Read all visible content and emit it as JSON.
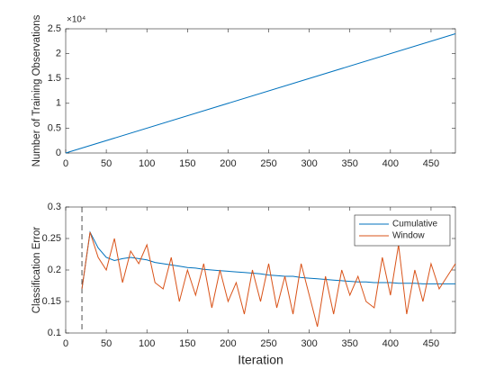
{
  "chart_data": [
    {
      "type": "line",
      "y_label": "Number of Training Observations",
      "y_exponent": "×10⁴",
      "x": [
        0,
        480
      ],
      "values": [
        0,
        24000
      ],
      "color": "#0072bd",
      "xlim": [
        0,
        480
      ],
      "xticks": [
        0,
        50,
        100,
        150,
        200,
        250,
        300,
        350,
        400,
        450
      ],
      "ylim": [
        0,
        25000
      ],
      "yticks": [
        0,
        {
          "value": 5000,
          "label": "0.5"
        },
        {
          "value": 10000,
          "label": "1"
        },
        {
          "value": 15000,
          "label": "1.5"
        },
        {
          "value": 20000,
          "label": "2"
        },
        {
          "value": 25000,
          "label": "2.5"
        }
      ],
      "grid": false
    },
    {
      "type": "line",
      "x_label": "Iteration",
      "y_label": "Classification Error",
      "x": [
        20,
        30,
        40,
        50,
        60,
        70,
        80,
        90,
        100,
        110,
        120,
        130,
        140,
        150,
        160,
        170,
        180,
        190,
        200,
        210,
        220,
        230,
        240,
        250,
        260,
        270,
        280,
        290,
        300,
        310,
        320,
        330,
        340,
        350,
        360,
        370,
        380,
        390,
        400,
        410,
        420,
        430,
        440,
        450,
        460,
        470,
        480
      ],
      "series": [
        {
          "name": "Cumulative",
          "color": "#0072bd",
          "values": [
            0.17,
            0.26,
            0.235,
            0.22,
            0.215,
            0.218,
            0.22,
            0.218,
            0.216,
            0.212,
            0.21,
            0.208,
            0.206,
            0.204,
            0.203,
            0.201,
            0.2,
            0.199,
            0.198,
            0.197,
            0.196,
            0.195,
            0.194,
            0.192,
            0.191,
            0.19,
            0.19,
            0.188,
            0.187,
            0.186,
            0.185,
            0.184,
            0.183,
            0.182,
            0.181,
            0.181,
            0.18,
            0.18,
            0.18,
            0.179,
            0.179,
            0.179,
            0.178,
            0.178,
            0.178,
            0.178,
            0.178
          ]
        },
        {
          "name": "Window",
          "color": "#d95319",
          "values": [
            0.17,
            0.26,
            0.22,
            0.2,
            0.25,
            0.18,
            0.23,
            0.21,
            0.24,
            0.18,
            0.17,
            0.22,
            0.15,
            0.2,
            0.16,
            0.21,
            0.14,
            0.2,
            0.15,
            0.18,
            0.13,
            0.2,
            0.15,
            0.21,
            0.14,
            0.19,
            0.13,
            0.21,
            0.16,
            0.11,
            0.19,
            0.13,
            0.2,
            0.16,
            0.19,
            0.15,
            0.14,
            0.22,
            0.16,
            0.24,
            0.13,
            0.2,
            0.15,
            0.21,
            0.17,
            0.19,
            0.21
          ]
        }
      ],
      "vline": 20,
      "xlim": [
        0,
        480
      ],
      "xticks": [
        0,
        50,
        100,
        150,
        200,
        250,
        300,
        350,
        400,
        450
      ],
      "ylim": [
        0.1,
        0.3
      ],
      "yticks": [
        0.1,
        0.15,
        0.2,
        0.25,
        0.3
      ],
      "grid": false,
      "legend": "top-right"
    }
  ]
}
